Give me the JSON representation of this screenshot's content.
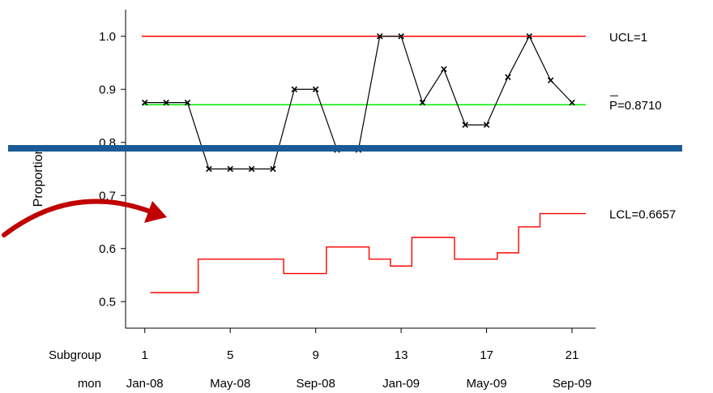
{
  "chart_data": {
    "type": "line",
    "title": "",
    "xlabel": "",
    "ylabel": "Proportion",
    "ylim": [
      0.45,
      1.05
    ],
    "xlim": [
      0.1,
      22.1
    ],
    "yticks": [
      0.5,
      0.6,
      0.7,
      0.8,
      0.9,
      1.0
    ],
    "ytick_labels": [
      "0.5",
      "0.6",
      "0.7",
      "0.8",
      "0.9",
      "1.0"
    ],
    "x_axis_rows": [
      {
        "name": "Subgroup",
        "labels": [
          {
            "x": 1,
            "text": "1"
          },
          {
            "x": 5,
            "text": "5"
          },
          {
            "x": 9,
            "text": "9"
          },
          {
            "x": 13,
            "text": "13"
          },
          {
            "x": 17,
            "text": "17"
          },
          {
            "x": 21,
            "text": "21"
          }
        ]
      },
      {
        "name": "mon",
        "labels": [
          {
            "x": 1,
            "text": "Jan-08"
          },
          {
            "x": 5,
            "text": "May-08"
          },
          {
            "x": 9,
            "text": "Sep-08"
          },
          {
            "x": 13,
            "text": "Jan-09"
          },
          {
            "x": 17,
            "text": "May-09"
          },
          {
            "x": 21,
            "text": "Sep-09"
          }
        ]
      }
    ],
    "series": [
      {
        "x": [
          1,
          2,
          3,
          4,
          5,
          6,
          7,
          8,
          9,
          10,
          11,
          12,
          13,
          14,
          15,
          16,
          17,
          18,
          19,
          20,
          21
        ],
        "values": [
          0.875,
          0.875,
          0.875,
          0.75,
          0.75,
          0.75,
          0.75,
          0.9,
          0.9,
          0.786,
          0.786,
          1.0,
          1.0,
          0.875,
          0.938,
          0.833,
          0.833,
          0.923,
          1.0,
          0.917,
          0.875
        ],
        "color": "#000000",
        "marker": "x"
      }
    ],
    "reference_lines": [
      {
        "label": "UCL=1",
        "value": 1.0,
        "color": "#ff0000"
      },
      {
        "label": "P=0.8710",
        "value": 0.871,
        "color": "#00ee00"
      }
    ],
    "lcl": {
      "label": "LCL=0.6657",
      "color": "#ff0000",
      "values": [
        0.517,
        0.517,
        0.517,
        0.58,
        0.58,
        0.58,
        0.58,
        0.553,
        0.553,
        0.603,
        0.603,
        0.58,
        0.567,
        0.621,
        0.621,
        0.58,
        0.58,
        0.592,
        0.641,
        0.666,
        0.666
      ]
    },
    "annotation_colors": {
      "band": "#1a5a96",
      "arrow": "#c00000"
    }
  }
}
